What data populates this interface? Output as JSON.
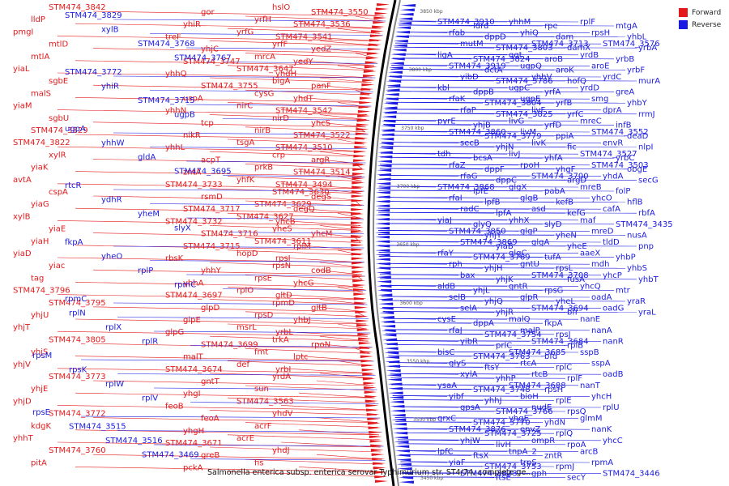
{
  "legend": {
    "forward": {
      "label": "Forward",
      "color": "#e31a1c"
    },
    "reverse": {
      "label": "Reverse",
      "color": "#1a1ae3"
    }
  },
  "caption": "Salmonella enterica subsp. enterica serovar Typhimurium str. ST4/74, complete ge...",
  "kbp_ticks": [
    "3850 kbp",
    "3800 kbp",
    "3750 kbp",
    "3700 kbp",
    "3650 kbp",
    "3600 kbp",
    "3550 kbp",
    "3500 kbp",
    "3450 kbp"
  ],
  "forward_genes": [
    "STM474_3842",
    "lldP",
    "pmgI",
    "mtlD",
    "mtlA",
    "yiaL",
    "sgbE",
    "malS",
    "yiaM",
    "sgbU",
    "STM474_3829",
    "STM474_3822",
    "xylR",
    "yiaK",
    "avtA",
    "cspA",
    "yiaG",
    "xylB",
    "yiaE",
    "yiaH",
    "yiaD",
    "yiac",
    "tag",
    "STM474_3796",
    "STM474_3795",
    "yhjU",
    "yhjT",
    "STM474_3805",
    "yhjS",
    "yhjV",
    "STM474_3773",
    "yhjE",
    "yhjD",
    "STM474_3772",
    "kdgK",
    "yhhT",
    "STM474_3760",
    "pitA",
    "gor",
    "yhiR",
    "treF",
    "yhjC",
    "STM474_3747",
    "yhhQ",
    "STM474_3755",
    "uspA",
    "yhhN",
    "tcp",
    "nikR",
    "yhhL",
    "acpT",
    "zntA",
    "STM474_3733",
    "rsmD",
    "STM474_3717",
    "STM474_3732",
    "STM474_3716",
    "STM474_3715",
    "rbsK",
    "yhhY",
    "yhhA",
    "STM474_3697",
    "glpD",
    "glpE",
    "glpG",
    "STM474_3699",
    "malT",
    "STM474_3674",
    "gntT",
    "yhgI",
    "feoB",
    "feoA",
    "yhgH",
    "STM474_3671",
    "greB",
    "pckA",
    "hslO",
    "yrfH",
    "yrfG",
    "yrfF",
    "mrcA",
    "STM474_3647",
    "bigA",
    "cysG",
    "nirC",
    "nirD",
    "nirB",
    "tsgA",
    "crp",
    "prkB",
    "yhfK",
    "STM474_3630",
    "STM474_3629",
    "STM474_3627",
    "yheS",
    "STM474_3611",
    "hopD",
    "rpsN",
    "rpsE",
    "rplO",
    "rpmD",
    "rpsD",
    "msrL",
    "trkA",
    "fmt",
    "def",
    "yrdA",
    "sun",
    "STM474_3563",
    "yhdV",
    "acrF",
    "acrE",
    "yhdJ",
    "fis",
    "STM474_3550",
    "STM474_3536",
    "STM474_3541",
    "yedZ",
    "yedY",
    "yhdH",
    "panF",
    "yhdT",
    "STM474_3542",
    "yhcS",
    "STM474_3522",
    "STM474_3510",
    "argR",
    "STM474_3514",
    "STM474_3494",
    "degS",
    "degQ",
    "yhcB",
    "yhcM",
    "rplM",
    "rpsI",
    "codB",
    "yhcG",
    "gltD",
    "gltB",
    "yhbJ",
    "yrbL",
    "rpoN",
    "lptc",
    "yrbI"
  ],
  "reverse_genes": [
    "STM474_3829",
    "xylB",
    "STM474_3768",
    "STM474_3767",
    "STM474_3772",
    "yhiR",
    "STM474_3715",
    "ugpB",
    "ugpA",
    "yhhW",
    "gldA",
    "STM474_3695",
    "rtcR",
    "ydhR",
    "yheM",
    "slyX",
    "fkpA",
    "yheO",
    "rplP",
    "rpmC",
    "rpmC",
    "rplN",
    "rplX",
    "rplR",
    "rpsM",
    "rpsK",
    "rplW",
    "rplV",
    "rpsE",
    "STM474_3515",
    "STM474_3516",
    "STM474_3469",
    "STM474_3910",
    "rfab",
    "mutM",
    "ligA",
    "STM474_3919",
    "yibD",
    "kbl",
    "rfaK",
    "rfaP",
    "pyrE",
    "STM474_3860",
    "secB",
    "tdh",
    "rfaZ",
    "rfaG",
    "STM474_3868",
    "rfaI",
    "radC",
    "yiaJ",
    "STM474_3850",
    "STM474_3869",
    "rfaY",
    "rph",
    "bax",
    "aldB",
    "selB",
    "selA",
    "cysE",
    "rfaJ",
    "yibR",
    "bisC",
    "glyS",
    "xylA",
    "ysaA",
    "yibf",
    "gpsA",
    "grxC",
    "STM474_3876",
    "yhjW",
    "lpfC",
    "yiaF",
    "STM474_3823",
    "ldrd",
    "dppD",
    "STM474_3803",
    "STM474_3824",
    "dctA",
    "STM474_3786",
    "dppB",
    "STM474_3804",
    "STM474_3825",
    "yhjB",
    "STM474_3779",
    "yhjN",
    "bcsA",
    "dppF",
    "dppC",
    "lpfE",
    "lpfB",
    "lpfA",
    "glyQ",
    "yhjY",
    "yiaB",
    "STM474_3769",
    "yhjH",
    "yhjK",
    "yhjL",
    "yhjQ",
    "yhjR",
    "dppA",
    "STM474_3754",
    "prlC",
    "STM474_3763",
    "ftsY",
    "yhhP",
    "STM474_3748",
    "yhhJ",
    "STM474_3766",
    "STM474_3770",
    "STM474_3725",
    "livH",
    "ftsX",
    "STM474_3753",
    "ftsE",
    "yhhM",
    "yhiQ",
    "STM474_3713",
    "ggt",
    "ugpQ",
    "yhhV",
    "ugpC",
    "ugpE",
    "livF",
    "livG",
    "livM",
    "livK",
    "livJ",
    "rpoH",
    "STM474_3700",
    "glgX",
    "glgB",
    "asd",
    "yhhX",
    "glgP",
    "glgA",
    "glgC",
    "gntU",
    "STM474_3708",
    "gntR",
    "glpR",
    "STM474_3694",
    "malQ",
    "malP",
    "STM474_3684",
    "STM474_3685",
    "rtcA",
    "rtcB",
    "STM474_3688",
    "bioH",
    "nudE",
    "yhgE",
    "envZ",
    "ompR",
    "tnpA_2",
    "trpS",
    "gph",
    "rpe",
    "dam",
    "damX",
    "aroB",
    "aroK",
    "hofQ",
    "yrfA",
    "yrfB",
    "yrfC",
    "yrfD",
    "ppiA",
    "fic",
    "yhfA",
    "yhgF",
    "argD",
    "pabA",
    "kefB",
    "kefG",
    "slyD",
    "yheN",
    "yheE",
    "tufA",
    "rpsL",
    "fusA",
    "rpsG",
    "yheL",
    "bfr",
    "fkpA",
    "rpsJ",
    "rplB",
    "bfd",
    "rplC",
    "rplF",
    "rpsH",
    "rplE",
    "rpsQ",
    "yhdN",
    "rplQ",
    "rpoA",
    "zntR",
    "rpmJ",
    "secY",
    "rplF",
    "rpsH",
    "STM474_3576",
    "yrdB",
    "aroE",
    "yrdC",
    "yrdD",
    "smg",
    "dprA",
    "mreC",
    "STM474_3552",
    "envR",
    "STM474_3527",
    "STM474_3503",
    "yhdA",
    "mreB",
    "yhcO",
    "cafA",
    "maf",
    "mreD",
    "tldD",
    "aaeX",
    "mdh",
    "yhcP",
    "yhcQ",
    "oadA",
    "oadG",
    "nanE",
    "nanA",
    "nanR",
    "sspB",
    "sspA",
    "oadB",
    "nanT",
    "yhcH",
    "rplU",
    "glmM",
    "nanK",
    "yhcC",
    "arcB",
    "rpmA",
    "STM474_3446",
    "mtgA",
    "yhbL",
    "yrbA",
    "yrbB",
    "yrbF",
    "murA",
    "greA",
    "yhbY",
    "rrmJ",
    "infB",
    "deaD",
    "nlpI",
    "yrbC",
    "obgE",
    "secG",
    "folP",
    "hflB",
    "rbfA",
    "STM474_3435",
    "nusA",
    "pnp",
    "yhbP",
    "yhbS",
    "yhbT",
    "mtr",
    "yraR",
    "yraL"
  ]
}
